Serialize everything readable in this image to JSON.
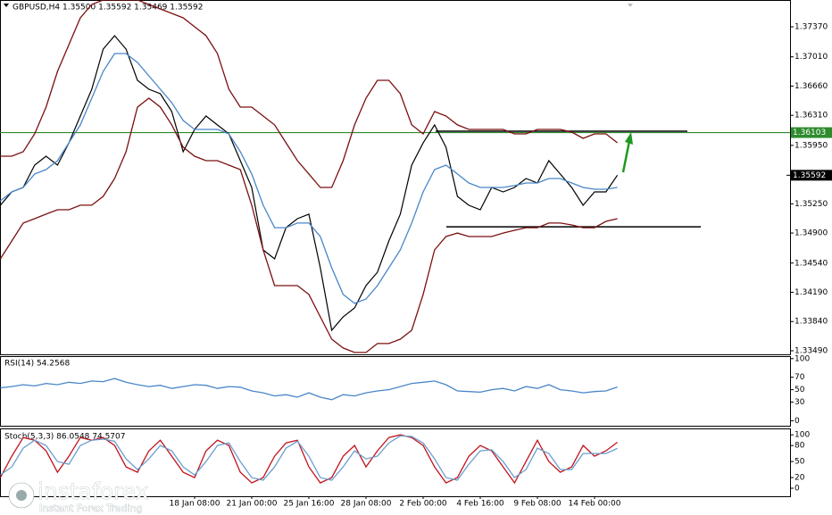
{
  "chart_data": [
    {
      "type": "line",
      "title": "GBPUSD,H4  1.35500 1.35592 1.35469 1.35592",
      "categories": [
        null,
        null,
        null,
        null,
        null,
        null,
        null,
        null,
        null,
        null,
        null,
        null,
        null,
        null,
        null,
        null,
        null,
        "18 Jan 08:00",
        null,
        null,
        null,
        null,
        "21 Jan 00:00",
        null,
        null,
        null,
        null,
        "25 Jan 16:00",
        null,
        null,
        null,
        null,
        "28 Jan 08:00",
        null,
        null,
        null,
        null,
        "2 Feb 00:00",
        null,
        null,
        null,
        null,
        "4 Feb 16:00",
        null,
        null,
        null,
        null,
        "9 Feb 08:00",
        null,
        null,
        null,
        null,
        "14 Feb 00:00",
        null,
        null
      ],
      "series": [
        {
          "color": "#000000",
          "values": [
            1.35232,
            1.35393,
            1.35446,
            1.35713,
            1.3582,
            1.35713,
            1.3598,
            1.36301,
            1.36622,
            1.37103,
            1.37263,
            1.37103,
            1.36729,
            1.36622,
            1.36568,
            1.36355,
            1.35874,
            1.36141,
            1.36301,
            1.36194,
            1.36087,
            1.35767,
            1.35446,
            1.34698,
            1.34591,
            1.34965,
            1.35072,
            1.35125,
            1.34484,
            1.33736,
            1.33896,
            1.34003,
            1.3427,
            1.34431,
            1.34805,
            1.35125,
            1.35713,
            1.3598,
            1.36194,
            1.35927,
            1.35339,
            1.35232,
            1.35179,
            1.35446,
            1.35393,
            1.35446,
            1.35553,
            1.35499,
            1.35767,
            1.35606,
            1.35446,
            1.35232,
            1.35393,
            1.35393,
            1.35592
          ]
        },
        {
          "color": "#7b1010",
          "values": [
            1.3582,
            1.3582,
            1.35874,
            1.36088,
            1.36408,
            1.36836,
            1.37157,
            1.37477,
            1.37638,
            1.37691,
            1.37691,
            1.37691,
            1.37691,
            1.37638,
            1.37584,
            1.37531,
            1.37477,
            1.3737,
            1.37263,
            1.3705,
            1.36622,
            1.36408,
            1.36408,
            1.36301,
            1.36195,
            1.35981,
            1.35767,
            1.35607,
            1.35446,
            1.35446,
            1.35767,
            1.36195,
            1.36515,
            1.36729,
            1.36729,
            1.36569,
            1.36195,
            1.36088,
            1.36355,
            1.36301,
            1.36195,
            1.36141,
            1.36141,
            1.36141,
            1.36141,
            1.36088,
            1.36088,
            1.36141,
            1.36141,
            1.36141,
            1.36109,
            1.36034,
            1.36088,
            1.36088,
            1.35981
          ]
        },
        {
          "color": "#7b1010",
          "values": [
            1.34591,
            1.34805,
            1.35019,
            1.35072,
            1.35126,
            1.35179,
            1.35179,
            1.35233,
            1.35233,
            1.35339,
            1.35553,
            1.35874,
            1.36408,
            1.36515,
            1.36408,
            1.36195,
            1.35928,
            1.3582,
            1.35767,
            1.35767,
            1.35713,
            1.3566,
            1.35233,
            1.34698,
            1.3427,
            1.3427,
            1.3427,
            1.34164,
            1.33896,
            1.33629,
            1.33523,
            1.33469,
            1.33469,
            1.33576,
            1.33576,
            1.33629,
            1.33736,
            1.34164,
            1.34698,
            1.34858,
            1.349,
            1.34858,
            1.34858,
            1.34858,
            1.349,
            1.34933,
            1.34964,
            1.34964,
            1.35019,
            1.35019,
            1.34997,
            1.34964,
            1.34964,
            1.3504,
            1.35072
          ]
        },
        {
          "color": "#4a86c8",
          "values": [
            1.35286,
            1.35393,
            1.35446,
            1.35607,
            1.3566,
            1.35767,
            1.35981,
            1.36195,
            1.36515,
            1.36836,
            1.3705,
            1.3705,
            1.36943,
            1.36782,
            1.36622,
            1.36462,
            1.36248,
            1.36141,
            1.36141,
            1.36141,
            1.36088,
            1.35874,
            1.35607,
            1.35233,
            1.34964,
            1.34964,
            1.35019,
            1.35019,
            1.34858,
            1.34484,
            1.34164,
            1.34057,
            1.3411,
            1.3427,
            1.34484,
            1.34698,
            1.35019,
            1.35393,
            1.3566,
            1.35713,
            1.35607,
            1.355,
            1.35446,
            1.35446,
            1.35446,
            1.35468,
            1.355,
            1.355,
            1.35553,
            1.35553,
            1.355,
            1.35446,
            1.35425,
            1.35425,
            1.35446
          ]
        }
      ],
      "ylim": [
        1.33447,
        1.37691
      ],
      "yticks": [
        {
          "value": 1.3737,
          "label": "1.37370"
        },
        {
          "value": 1.3701,
          "label": "1.37010"
        },
        {
          "value": 1.3666,
          "label": "1.36660"
        },
        {
          "value": 1.3631,
          "label": "1.36310"
        },
        {
          "value": 1.3595,
          "label": "1.35950"
        },
        {
          "value": 1.3525,
          "label": "1.35250"
        },
        {
          "value": 1.349,
          "label": "1.34900"
        },
        {
          "value": 1.3454,
          "label": "1.34540"
        },
        {
          "value": 1.3419,
          "label": "1.34190"
        },
        {
          "value": 1.3384,
          "label": "1.33840"
        },
        {
          "value": 1.3349,
          "label": "1.33490"
        }
      ],
      "hline": {
        "value": 1.36103,
        "label": "1.36103",
        "color": "#2e8b2e"
      },
      "last_price": {
        "value": 1.35592,
        "label": "1.35592"
      },
      "range_lines": [
        1.3612,
        1.34975
      ]
    },
    {
      "type": "line",
      "title": "RSI(14) 54.2568",
      "series": [
        {
          "color": "#4a86c8",
          "values": [
            53,
            55,
            58,
            56,
            60,
            58,
            62,
            60,
            64,
            63,
            68,
            62,
            58,
            55,
            57,
            52,
            55,
            58,
            57,
            52,
            55,
            54,
            48,
            45,
            40,
            42,
            38,
            45,
            38,
            34,
            42,
            40,
            45,
            48,
            50,
            55,
            60,
            62,
            64,
            58,
            48,
            47,
            46,
            50,
            52,
            48,
            55,
            52,
            58,
            50,
            48,
            45,
            47,
            48,
            54.2568
          ]
        }
      ],
      "ylim": [
        -8,
        104
      ],
      "yticks": [
        100,
        70,
        50,
        30,
        0
      ]
    },
    {
      "type": "line",
      "title": "Stoch(5,3,3) 86.0548 74.5707",
      "series": [
        {
          "color": "#c0141c",
          "values": [
            20,
            60,
            95,
            90,
            70,
            30,
            60,
            95,
            90,
            95,
            80,
            40,
            30,
            70,
            90,
            60,
            30,
            20,
            70,
            90,
            80,
            30,
            10,
            20,
            60,
            85,
            90,
            40,
            10,
            20,
            60,
            80,
            40,
            70,
            95,
            100,
            95,
            80,
            40,
            10,
            20,
            60,
            80,
            70,
            40,
            10,
            50,
            90,
            50,
            30,
            40,
            80,
            60,
            70,
            86.0548
          ]
        },
        {
          "color": "#6a9fd0",
          "values": [
            25,
            40,
            75,
            90,
            80,
            50,
            45,
            80,
            90,
            92,
            88,
            55,
            35,
            55,
            80,
            70,
            40,
            25,
            50,
            80,
            85,
            50,
            20,
            15,
            40,
            75,
            88,
            60,
            20,
            15,
            40,
            70,
            55,
            60,
            85,
            98,
            97,
            85,
            55,
            20,
            15,
            45,
            70,
            72,
            50,
            20,
            35,
            75,
            65,
            35,
            35,
            65,
            65,
            65,
            74.5707
          ]
        }
      ],
      "ylim": [
        -15,
        112
      ],
      "yticks": [
        100,
        80,
        50,
        20,
        0
      ]
    }
  ],
  "watermark": {
    "brand": "instaforex",
    "tagline": "Instant Forex Trading"
  }
}
